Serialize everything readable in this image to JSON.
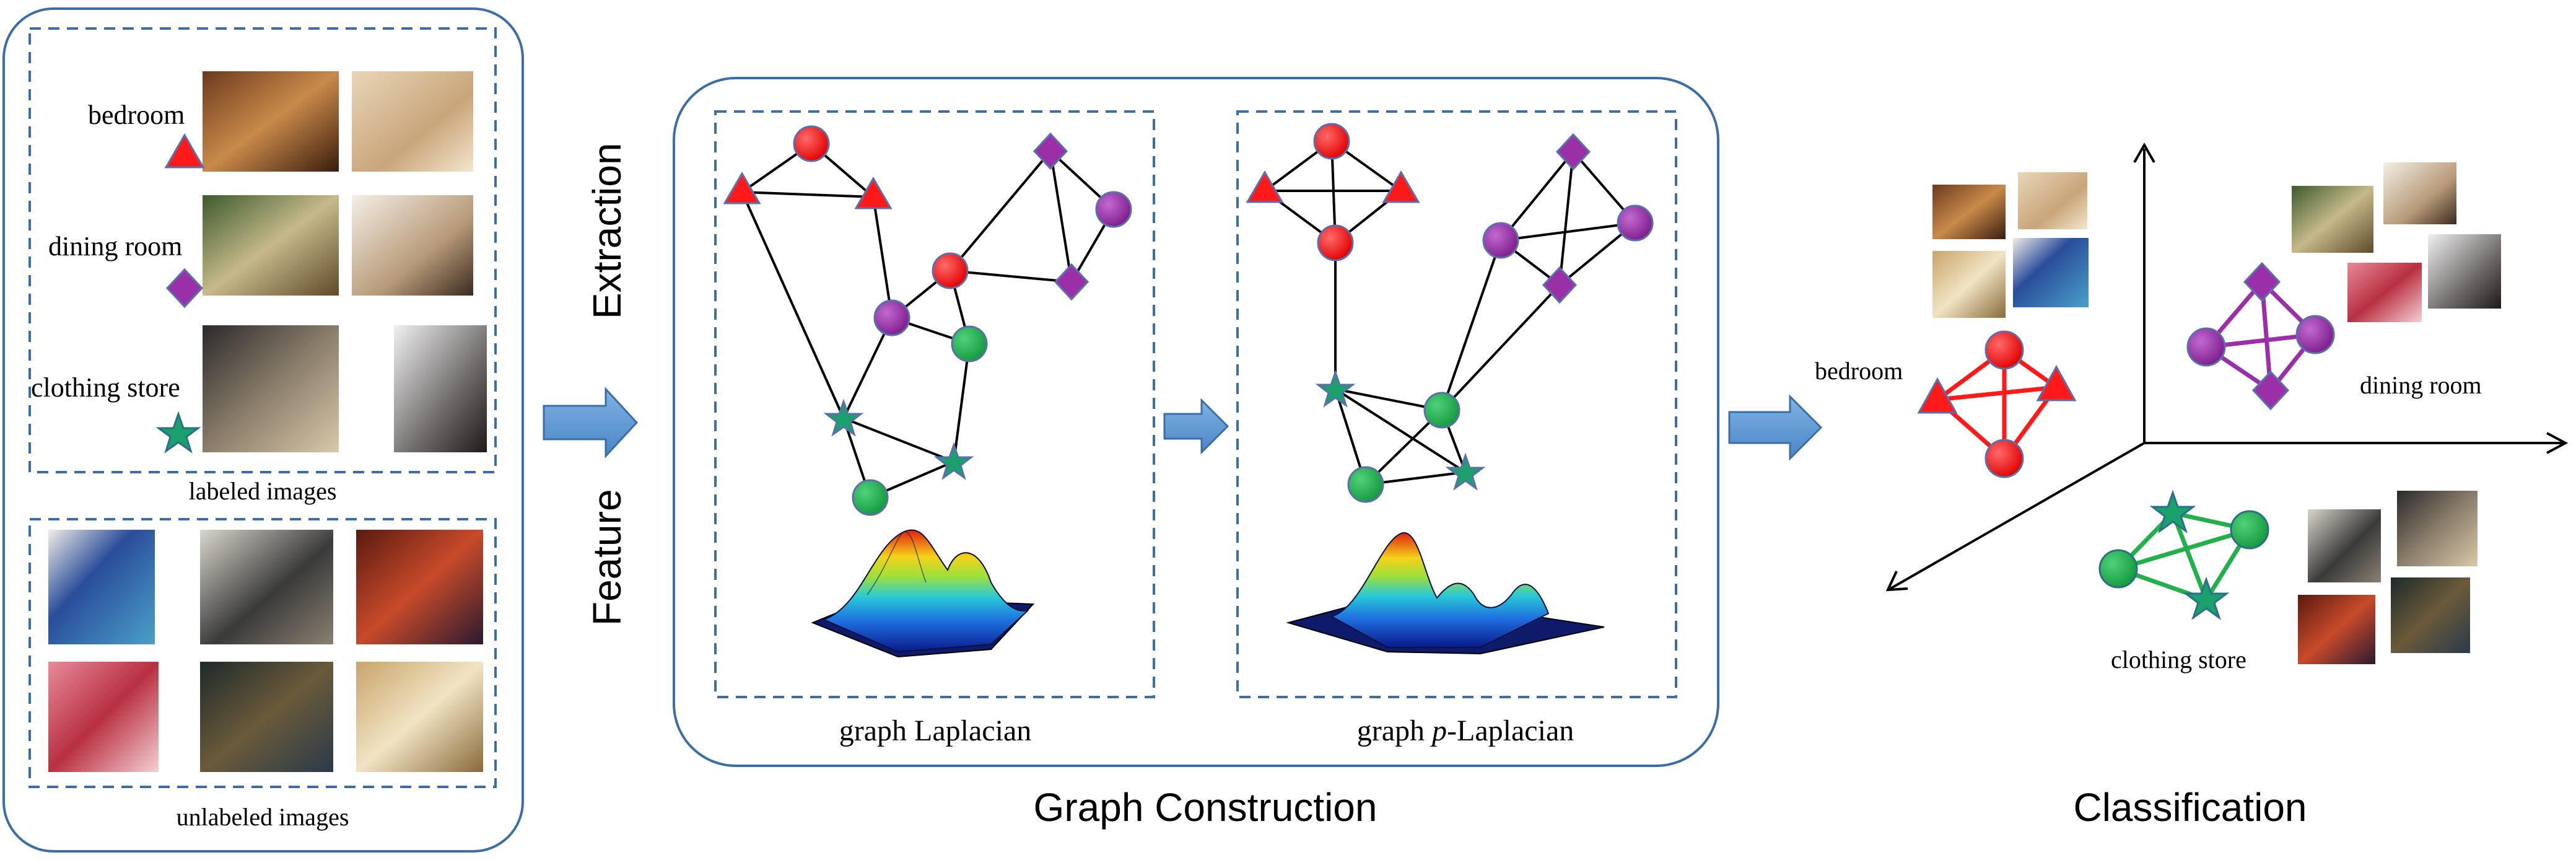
{
  "labels": {
    "bedroom": "bedroom",
    "dining_room": "dining room",
    "clothing_store": "clothing store",
    "labeled_images": "labeled images",
    "unlabeled_images": "unlabeled images",
    "feature": "Feature",
    "extraction": "Extraction",
    "graph_laplacian": "graph Laplacian",
    "graph_p_prefix": "graph ",
    "graph_p_italic": "p",
    "graph_p_suffix": "-Laplacian",
    "graph_construction": "Graph Construction",
    "classification": "Classification",
    "class_bedroom": "bedroom",
    "class_dining_room": "dining room",
    "class_clothing_store": "clothing store"
  },
  "colors": {
    "bedroom_red": "#ff1a1a",
    "dining_purple": "#9b2fa8",
    "store_green": "#22b04a",
    "frame_blue": "#3b6ea8",
    "arrow_blue": "#5b9bd5",
    "node_stroke": "#5a6fae"
  }
}
